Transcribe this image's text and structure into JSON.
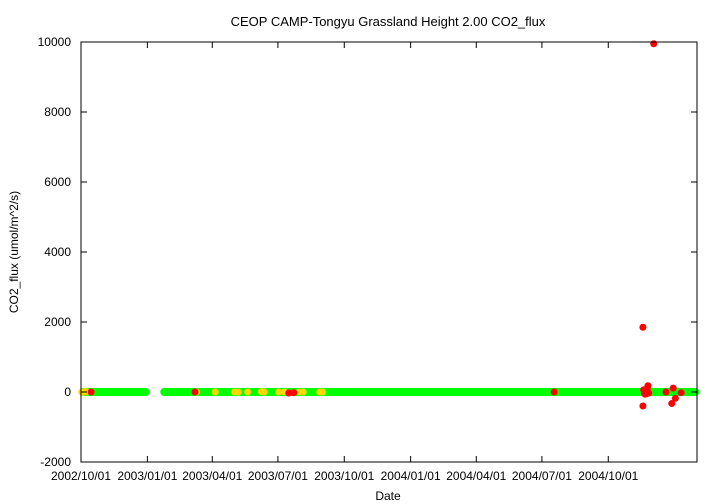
{
  "chart_data": {
    "type": "scatter",
    "title": "CEOP CAMP-Tongyu Grassland Height 2.00 CO2_flux",
    "xlabel": "Date",
    "ylabel": "CO2_flux (umol/m^2/s)",
    "x_type": "date",
    "xlim": [
      "2002-10-01",
      "2005-02-01"
    ],
    "ylim": [
      -2000,
      10000
    ],
    "yticks": [
      -2000,
      0,
      2000,
      4000,
      6000,
      8000,
      10000
    ],
    "xticks": [
      "2002/10/01",
      "2003/01/01",
      "2003/04/01",
      "2003/07/01",
      "2003/10/01",
      "2004/01/01",
      "2004/04/01",
      "2004/07/01",
      "2004/10/01"
    ],
    "grid": false,
    "legend": "none",
    "series": [
      {
        "color": "#00ff00",
        "segments": [
          {
            "from": "2002-10-02",
            "to": "2002-12-31",
            "y": 0
          },
          {
            "from": "2003-01-23",
            "to": "2005-01-31",
            "y": 0
          }
        ]
      },
      {
        "color": "#ffd700",
        "points": [
          [
            "2002-10-02",
            0
          ],
          [
            "2002-10-04",
            -10
          ],
          [
            "2002-10-06",
            15
          ],
          [
            "2002-10-09",
            5
          ],
          [
            "2003-03-10",
            0
          ],
          [
            "2003-04-05",
            0
          ],
          [
            "2003-05-02",
            0
          ],
          [
            "2003-05-07",
            -5
          ],
          [
            "2003-05-20",
            0
          ],
          [
            "2003-06-08",
            10
          ],
          [
            "2003-06-12",
            0
          ],
          [
            "2003-07-02",
            0
          ],
          [
            "2003-07-10",
            0
          ],
          [
            "2003-07-31",
            0
          ],
          [
            "2003-08-05",
            0
          ],
          [
            "2003-08-28",
            0
          ],
          [
            "2003-09-01",
            0
          ]
        ]
      },
      {
        "color": "#ff0000",
        "points": [
          [
            "2002-10-15",
            0
          ],
          [
            "2003-03-08",
            0
          ],
          [
            "2003-07-16",
            -30
          ],
          [
            "2003-07-23",
            -20
          ],
          [
            "2004-07-18",
            0
          ],
          [
            "2004-11-18",
            1850
          ],
          [
            "2004-11-18",
            -400
          ],
          [
            "2004-11-19",
            60
          ],
          [
            "2004-11-20",
            -40
          ],
          [
            "2004-11-21",
            -60
          ],
          [
            "2004-11-22",
            0
          ],
          [
            "2004-11-23",
            -50
          ],
          [
            "2004-11-24",
            100
          ],
          [
            "2004-11-25",
            180
          ],
          [
            "2004-11-26",
            -30
          ],
          [
            "2004-12-03",
            9950
          ],
          [
            "2004-12-20",
            0
          ],
          [
            "2004-12-28",
            -330
          ],
          [
            "2004-12-30",
            110
          ],
          [
            "2005-01-02",
            -180
          ],
          [
            "2005-01-10",
            -20
          ]
        ]
      }
    ]
  }
}
